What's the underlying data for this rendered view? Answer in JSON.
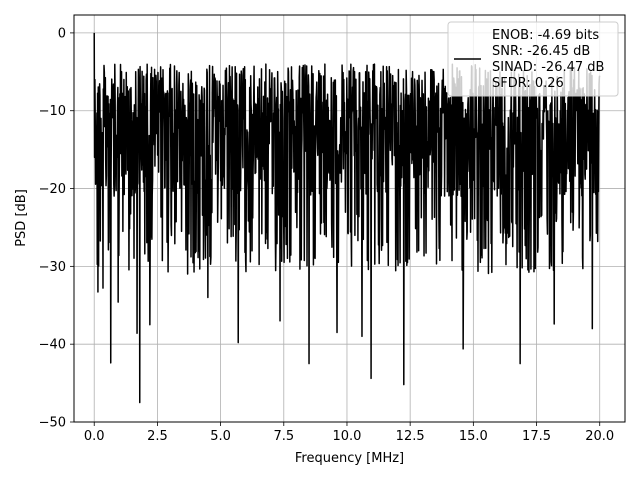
{
  "chart_data": {
    "type": "line",
    "xlabel": "Frequency [MHz]",
    "ylabel": "PSD [dB]",
    "xlim": [
      -0.8,
      21.0
    ],
    "ylim": [
      -50,
      2.3
    ],
    "xticks": [
      0.0,
      2.5,
      5.0,
      7.5,
      10.0,
      12.5,
      15.0,
      17.5,
      20.0
    ],
    "xtick_labels": [
      "0.0",
      "2.5",
      "5.0",
      "7.5",
      "10.0",
      "12.5",
      "15.0",
      "17.5",
      "20.0"
    ],
    "yticks": [
      0,
      -10,
      -20,
      -30,
      -40,
      -50
    ],
    "ytick_labels": [
      "0",
      "−10",
      "−20",
      "−30",
      "−40",
      "−50"
    ],
    "grid": true,
    "legend_position": "top-right",
    "legend_lines": [
      "ENOB: -4.69 bits",
      "SNR: -26.45 dB",
      "SINAD: -26.47 dB",
      "SFDR: 0.26"
    ],
    "line_color": "#000000",
    "series": [
      {
        "x_range": [
          0.0,
          20.0
        ],
        "num_points": 1500,
        "envelope_upper_db": -4,
        "typical_low_db": -23,
        "peak_db": 0,
        "deep_dips": [
          [
            1.8,
            -47.5
          ],
          [
            0.65,
            -42.4
          ],
          [
            12.25,
            -45.2
          ],
          [
            10.95,
            -44.4
          ],
          [
            8.5,
            -42.5
          ],
          [
            16.85,
            -42.5
          ],
          [
            14.6,
            -40.6
          ],
          [
            5.7,
            -39.8
          ],
          [
            10.6,
            -39.0
          ],
          [
            1.7,
            -38.6
          ],
          [
            9.6,
            -38.5
          ],
          [
            19.7,
            -38.0
          ],
          [
            2.2,
            -37.5
          ],
          [
            18.2,
            -37.4
          ],
          [
            7.35,
            -37.0
          ],
          [
            4.5,
            -34.0
          ],
          [
            0.15,
            -33.3
          ],
          [
            0.35,
            -32.8
          ],
          [
            0.95,
            -34.6
          ]
        ]
      }
    ]
  }
}
